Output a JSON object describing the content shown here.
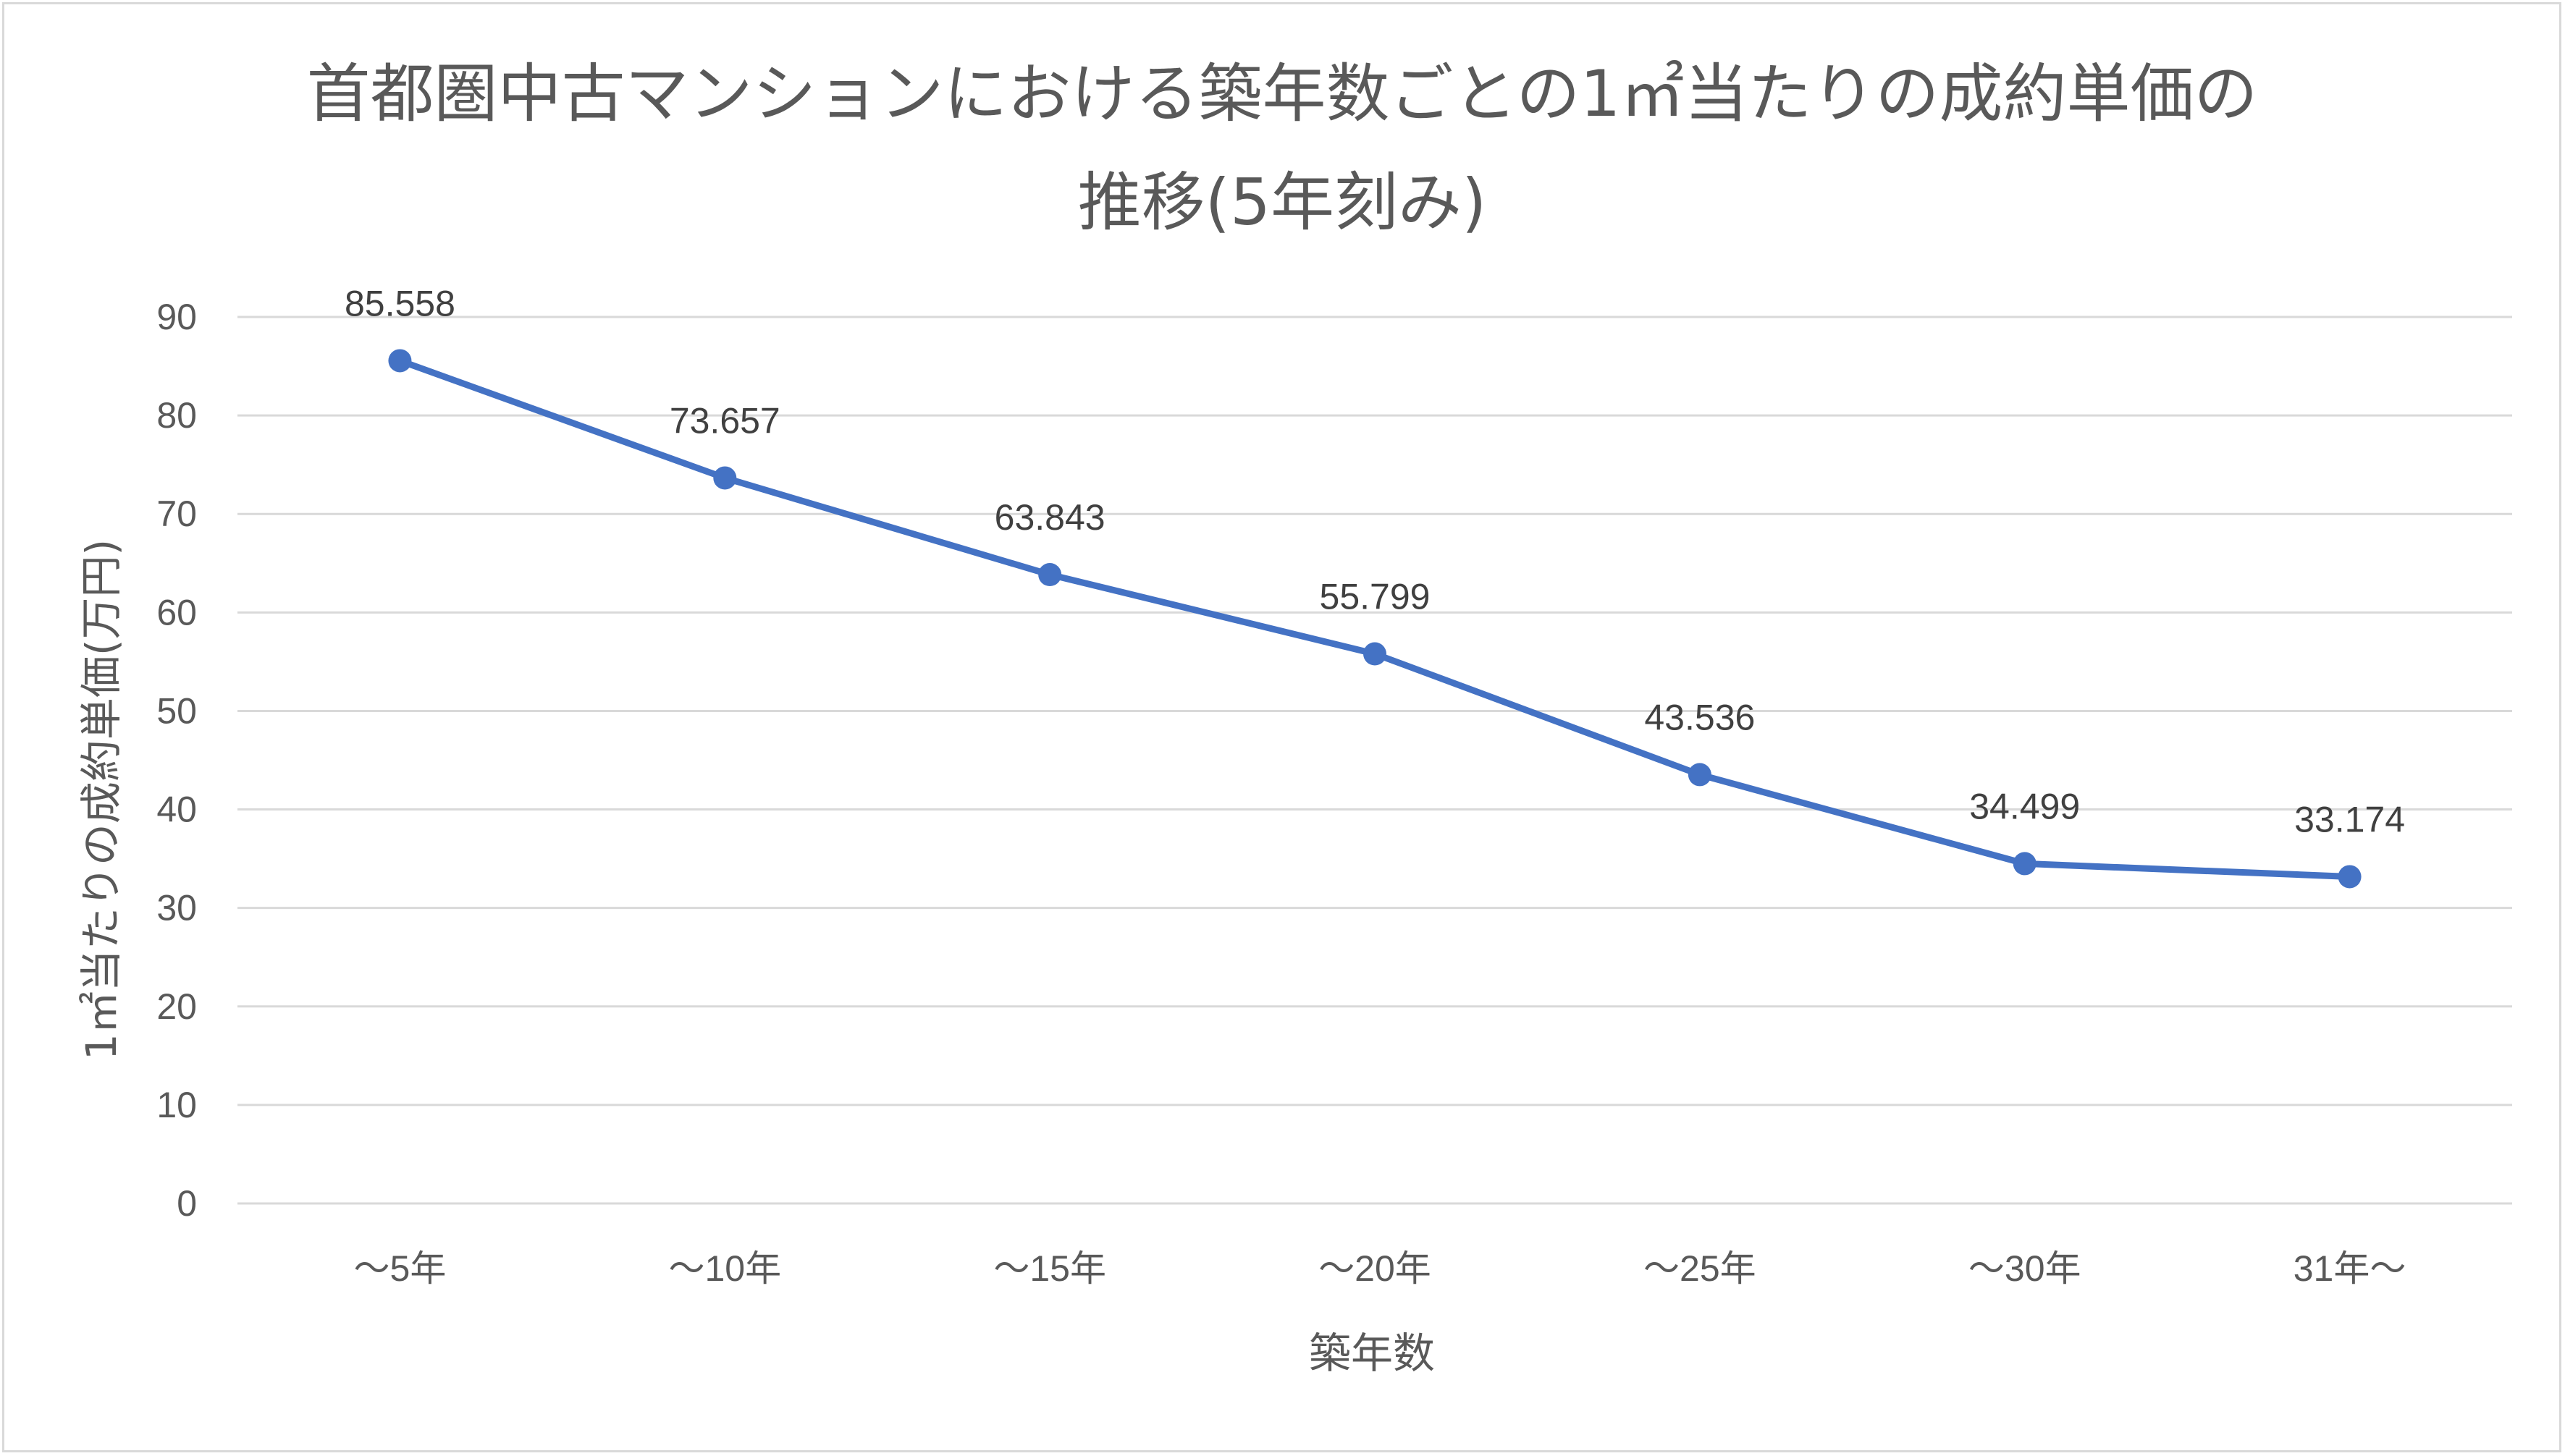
{
  "chart_data": {
    "type": "line",
    "title_line1": "首都圏中古マンションにおける築年数ごとの1㎡当たりの成約単価の",
    "title_line2": "推移(5年刻み)",
    "xlabel": "築年数",
    "ylabel": "1㎡当たりの成約単価(万円)",
    "categories": [
      "～5年",
      "～10年",
      "～15年",
      "～20年",
      "～25年",
      "～30年",
      "31年～"
    ],
    "series": [
      {
        "values": [
          85.558,
          73.657,
          63.843,
          55.799,
          43.536,
          34.499,
          33.174
        ],
        "labels": [
          "85.558",
          "73.657",
          "63.843",
          "55.799",
          "43.536",
          "34.499",
          "33.174"
        ],
        "color": "#4472c4"
      }
    ],
    "ylim": [
      0,
      90
    ],
    "yticks": [
      "0",
      "10",
      "20",
      "30",
      "40",
      "50",
      "60",
      "70",
      "80",
      "90"
    ],
    "grid": true,
    "legend": "none"
  }
}
